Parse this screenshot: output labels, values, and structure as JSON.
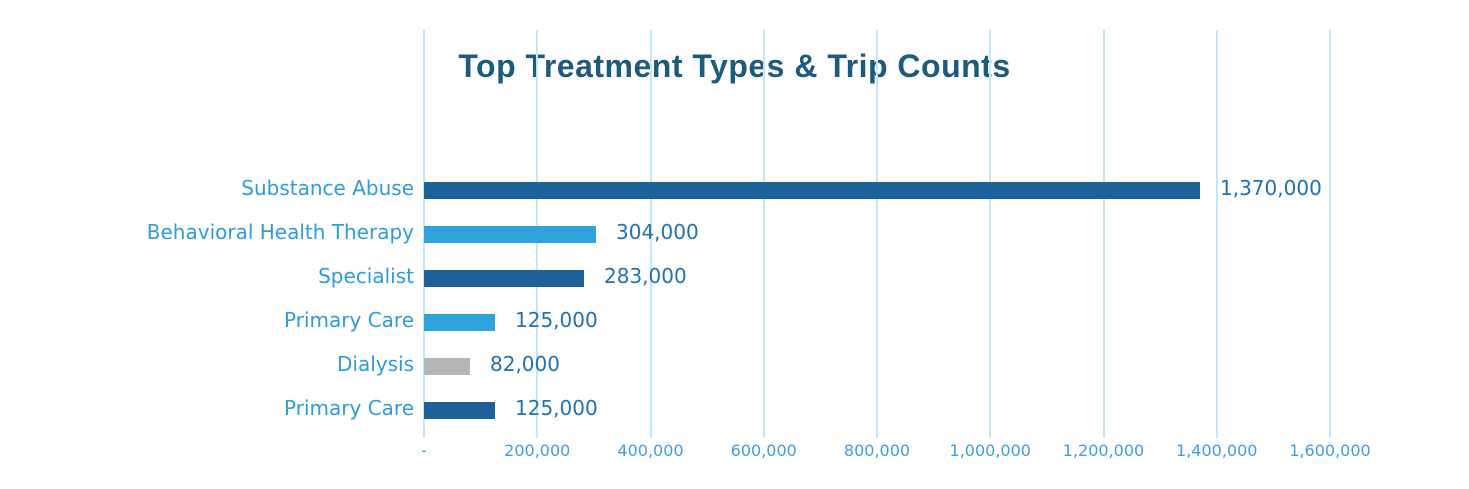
{
  "chart_data": {
    "type": "bar",
    "orientation": "horizontal",
    "title": "Top Treatment Types & Trip Counts",
    "categories": [
      "Substance Abuse",
      "Behavioral Health Therapy",
      "Specialist",
      "Primary Care",
      "Dialysis",
      "Primary Care"
    ],
    "values": [
      1370000,
      304000,
      283000,
      125000,
      82000,
      125000
    ],
    "value_labels": [
      "1,370,000",
      "304,000",
      "283,000",
      "125,000",
      "82,000",
      "125,000"
    ],
    "bar_colors": [
      "#1D6199",
      "#2FA3DC",
      "#1D6199",
      "#2FA3DC",
      "#B5B5B5",
      "#1D6199"
    ],
    "xlabel": "",
    "ylabel": "",
    "xlim": [
      0,
      1600000
    ],
    "x_tick_interval": 200000,
    "x_tick_labels": [
      "-",
      "200,000",
      "400,000",
      "600,000",
      "800,000",
      "1,000,000",
      "1,200,000",
      "1,400,000",
      "1,600,000"
    ],
    "grid": "vertical",
    "legend_position": "none",
    "colors": {
      "title": "#1C5A7E",
      "category_label": "#2F9CDB",
      "value_label": "#2173AE",
      "tick_label": "#41A0DB",
      "gridline": "#C4E7F8",
      "background": "#FFFFFF"
    }
  }
}
